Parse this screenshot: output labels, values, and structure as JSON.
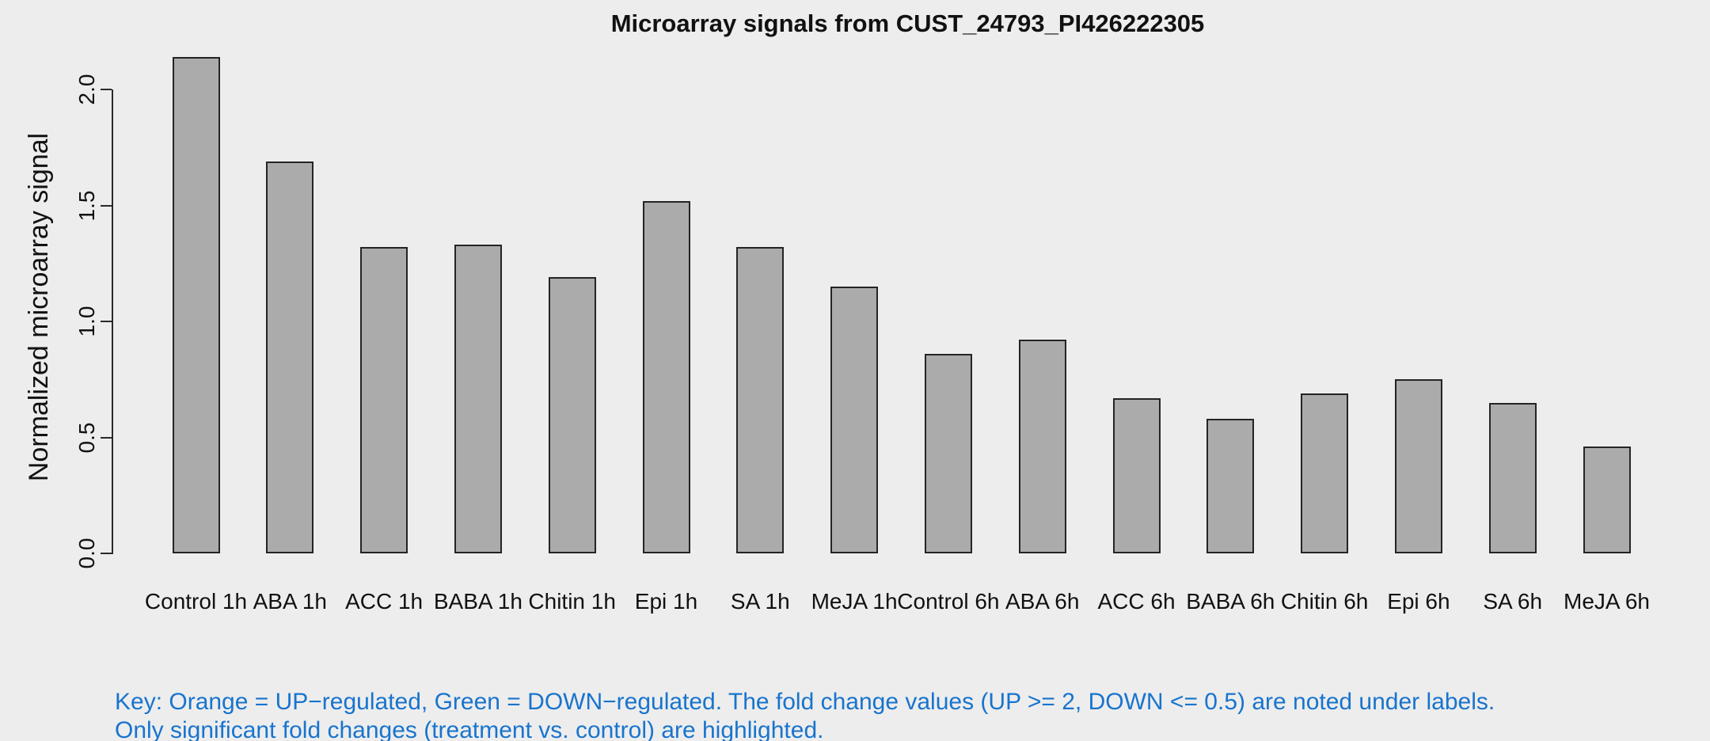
{
  "chart_data": {
    "type": "bar",
    "title": "Microarray signals from CUST_24793_PI426222305",
    "ylabel": "Normalized microarray signal",
    "xlabel": "",
    "categories": [
      "Control 1h",
      "ABA 1h",
      "ACC 1h",
      "BABA 1h",
      "Chitin 1h",
      "Epi 1h",
      "SA 1h",
      "MeJA 1h",
      "Control 6h",
      "ABA 6h",
      "ACC 6h",
      "BABA 6h",
      "Chitin 6h",
      "Epi 6h",
      "SA 6h",
      "MeJA 6h"
    ],
    "values": [
      2.14,
      1.69,
      1.32,
      1.33,
      1.19,
      1.52,
      1.32,
      1.15,
      0.86,
      0.92,
      0.67,
      0.58,
      0.69,
      0.75,
      0.65,
      0.46
    ],
    "ytick_values": [
      0.0,
      0.5,
      1.0,
      1.5,
      2.0
    ],
    "ytick_labels": [
      "0.0",
      "0.5",
      "1.0",
      "1.5",
      "2.0"
    ],
    "ylim": [
      0.0,
      2.14
    ],
    "grid": false,
    "legend_position": "none",
    "colors": {
      "background": "#EDEDED",
      "bar_fill": "#ABABAB",
      "bar_border": "#242424",
      "axis": "#2A2A2A",
      "text": "#111111"
    }
  },
  "footer": {
    "key_line1": "Key: Orange = UP−regulated, Green = DOWN−regulated. The fold change values (UP >= 2, DOWN <= 0.5) are noted under labels.",
    "key_line2": "Only significant fold changes (treatment vs. control) are highlighted.",
    "key_color": "#1874CD"
  }
}
